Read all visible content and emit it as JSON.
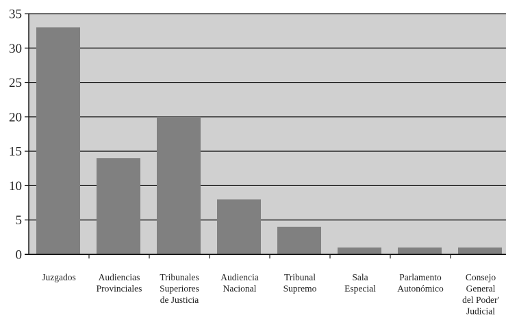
{
  "chart_data": {
    "type": "bar",
    "title": "",
    "xlabel": "",
    "ylabel": "",
    "categories": [
      "Juzgados",
      "Audiencias Provinciales",
      "Tribunales Superiores de Justicia",
      "Audiencia Nacional",
      "Tribunal Supremo",
      "Sala Especial",
      "Parlamento Autonómico",
      "Consejo General del Poder' Judicial"
    ],
    "category_label_lines": [
      [
        "Juzgados"
      ],
      [
        "Audiencias",
        "Provinciales"
      ],
      [
        "Tribunales",
        "Superiores",
        "de Justicia"
      ],
      [
        "Audiencia",
        "Nacional"
      ],
      [
        "Tribunal",
        "Supremo"
      ],
      [
        "Sala",
        "Especial"
      ],
      [
        "Parlamento",
        "Autonómico"
      ],
      [
        "Consejo",
        "General",
        "del Poder'",
        "Judicial"
      ]
    ],
    "values": [
      33,
      14,
      20,
      8,
      4,
      1,
      1,
      1
    ],
    "ylim": [
      0,
      35
    ],
    "yticks": [
      0,
      5,
      10,
      15,
      20,
      25,
      30,
      35
    ],
    "grid": true,
    "legend": "none",
    "colors": {
      "plot_background": "#d0d0d0",
      "bar": "#808080",
      "grid": "#1a1a1a",
      "axis": "#1a1a1a",
      "text": "#222222"
    }
  }
}
